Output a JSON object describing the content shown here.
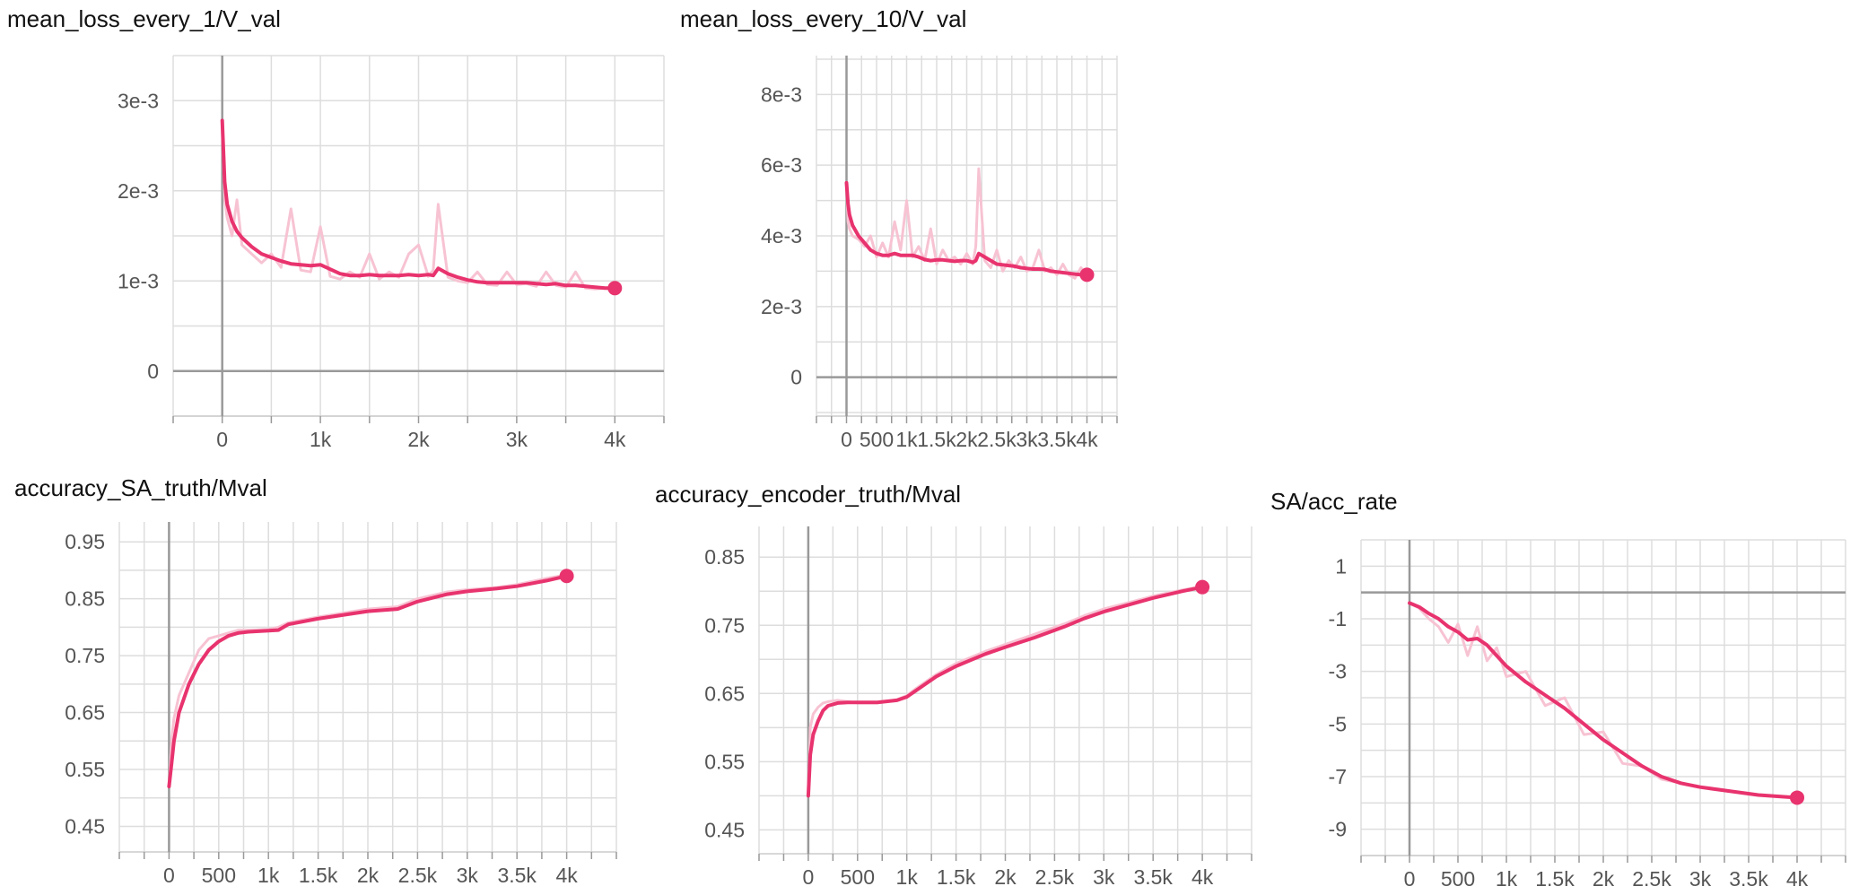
{
  "chart_data": [
    {
      "type": "line",
      "title": "mean_loss_every_1/V_val",
      "xlabel": "",
      "ylabel": "",
      "xlim": [
        -500,
        4500
      ],
      "ylim": [
        -0.0005,
        0.0035
      ],
      "xticks": [
        0,
        1000,
        2000,
        3000,
        4000
      ],
      "xtick_labels": [
        "0",
        "1k",
        "2k",
        "3k",
        "4k"
      ],
      "yticks": [
        0,
        0.001,
        0.002,
        0.003
      ],
      "ytick_labels": [
        "0",
        "1e-3",
        "2e-3",
        "3e-3"
      ],
      "grid": true,
      "line_color": "#e8336e",
      "raw_color": "#f7c3d3",
      "series": [
        {
          "x": [
            0,
            25,
            50,
            100,
            150,
            200,
            300,
            400,
            500,
            600,
            700,
            800,
            900,
            1000,
            1100,
            1200,
            1300,
            1400,
            1500,
            1600,
            1700,
            1800,
            1900,
            2000,
            2100,
            2150,
            2200,
            2300,
            2400,
            2500,
            2600,
            2700,
            2800,
            2900,
            3000,
            3100,
            3200,
            3300,
            3400,
            3500,
            3600,
            3700,
            3800,
            3900,
            4000
          ],
          "smoothed": [
            0.00278,
            0.0021,
            0.00185,
            0.00166,
            0.00155,
            0.00148,
            0.00138,
            0.0013,
            0.00126,
            0.00122,
            0.00119,
            0.00118,
            0.00117,
            0.00118,
            0.00113,
            0.00108,
            0.00106,
            0.00106,
            0.00107,
            0.00106,
            0.00106,
            0.00106,
            0.00107,
            0.00106,
            0.00107,
            0.00106,
            0.00114,
            0.00108,
            0.00104,
            0.00101,
            0.00099,
            0.00098,
            0.00098,
            0.00098,
            0.00098,
            0.00098,
            0.00097,
            0.00096,
            0.00097,
            0.00095,
            0.00095,
            0.00094,
            0.00093,
            0.00092,
            0.00092
          ],
          "raw": [
            0.00278,
            0.0019,
            0.0017,
            0.0015,
            0.0019,
            0.0014,
            0.0013,
            0.0012,
            0.0013,
            0.00115,
            0.0018,
            0.00112,
            0.0011,
            0.0016,
            0.00105,
            0.00102,
            0.0011,
            0.00104,
            0.0013,
            0.00102,
            0.0011,
            0.00104,
            0.0013,
            0.0014,
            0.00105,
            0.00112,
            0.00185,
            0.00104,
            0.001,
            0.00098,
            0.0011,
            0.00096,
            0.00095,
            0.0011,
            0.00096,
            0.00097,
            0.00094,
            0.0011,
            0.00095,
            0.00093,
            0.0011,
            0.00092,
            0.00091,
            0.00092,
            0.0009
          ]
        }
      ]
    },
    {
      "type": "line",
      "title": "mean_loss_every_10/V_val",
      "xlabel": "",
      "ylabel": "",
      "xlim": [
        -500,
        4500
      ],
      "ylim": [
        -0.0011,
        0.0091
      ],
      "xticks": [
        0,
        500,
        1000,
        1500,
        2000,
        2500,
        3000,
        3500,
        4000
      ],
      "xtick_labels": [
        "0",
        "500",
        "1k",
        "1.5k",
        "2k",
        "2.5k",
        "3k",
        "3.5k",
        "4k"
      ],
      "yticks": [
        0,
        0.002,
        0.004,
        0.006,
        0.008
      ],
      "ytick_labels": [
        "0",
        "2e-3",
        "4e-3",
        "6e-3",
        "8e-3"
      ],
      "grid": true,
      "line_color": "#e8336e",
      "raw_color": "#f7c3d3",
      "series": [
        {
          "x": [
            0,
            25,
            50,
            100,
            200,
            300,
            400,
            500,
            600,
            700,
            800,
            900,
            1000,
            1100,
            1200,
            1300,
            1400,
            1500,
            1600,
            1700,
            1800,
            1900,
            2000,
            2100,
            2150,
            2200,
            2300,
            2400,
            2500,
            2600,
            2700,
            2800,
            2900,
            3000,
            3100,
            3200,
            3300,
            3400,
            3500,
            3600,
            3700,
            3800,
            3900,
            4000
          ],
          "smoothed": [
            0.0055,
            0.0049,
            0.0046,
            0.0043,
            0.004,
            0.0038,
            0.0036,
            0.0035,
            0.00345,
            0.00345,
            0.0035,
            0.00345,
            0.00345,
            0.00345,
            0.0034,
            0.00333,
            0.0033,
            0.00332,
            0.00332,
            0.0033,
            0.00328,
            0.0033,
            0.0033,
            0.00325,
            0.0033,
            0.0035,
            0.0034,
            0.0033,
            0.0032,
            0.00318,
            0.00316,
            0.00314,
            0.0031,
            0.00308,
            0.00306,
            0.00306,
            0.00305,
            0.003,
            0.00298,
            0.00296,
            0.00294,
            0.00292,
            0.0029,
            0.0029
          ],
          "raw": [
            0.0055,
            0.0044,
            0.0042,
            0.004,
            0.0039,
            0.0037,
            0.004,
            0.0034,
            0.0038,
            0.0034,
            0.0044,
            0.0036,
            0.005,
            0.0034,
            0.0037,
            0.0033,
            0.0042,
            0.0032,
            0.0036,
            0.0033,
            0.0034,
            0.0032,
            0.0035,
            0.0032,
            0.0037,
            0.0059,
            0.0033,
            0.0031,
            0.0036,
            0.003,
            0.0033,
            0.0031,
            0.0034,
            0.003,
            0.0031,
            0.0036,
            0.003,
            0.0031,
            0.0029,
            0.0032,
            0.0029,
            0.0028,
            0.0031,
            0.0029
          ]
        }
      ]
    },
    {
      "type": "line",
      "title": "accuracy_SA_truth/Mval",
      "xlabel": "",
      "ylabel": "",
      "xlim": [
        -500,
        4500
      ],
      "ylim": [
        0.405,
        0.985
      ],
      "xticks": [
        0,
        500,
        1000,
        1500,
        2000,
        2500,
        3000,
        3500,
        4000
      ],
      "xtick_labels": [
        "0",
        "500",
        "1k",
        "1.5k",
        "2k",
        "2.5k",
        "3k",
        "3.5k",
        "4k"
      ],
      "yticks": [
        0.45,
        0.55,
        0.65,
        0.75,
        0.85,
        0.95
      ],
      "ytick_labels": [
        "0.45",
        "0.55",
        "0.65",
        "0.75",
        "0.85",
        "0.95"
      ],
      "grid": true,
      "line_color": "#e8336e",
      "raw_color": "#f7c3d3",
      "series": [
        {
          "x": [
            0,
            25,
            50,
            100,
            200,
            300,
            400,
            500,
            600,
            700,
            800,
            1000,
            1100,
            1200,
            1500,
            2000,
            2300,
            2500,
            2800,
            3000,
            3300,
            3500,
            3800,
            4000
          ],
          "smoothed": [
            0.52,
            0.56,
            0.6,
            0.65,
            0.7,
            0.735,
            0.76,
            0.775,
            0.785,
            0.79,
            0.792,
            0.794,
            0.795,
            0.805,
            0.815,
            0.828,
            0.832,
            0.845,
            0.858,
            0.863,
            0.868,
            0.872,
            0.882,
            0.89
          ],
          "raw": [
            0.52,
            0.6,
            0.64,
            0.68,
            0.72,
            0.76,
            0.78,
            0.785,
            0.79,
            0.795,
            0.795,
            0.796,
            0.8,
            0.808,
            0.818,
            0.832,
            0.836,
            0.85,
            0.862,
            0.866,
            0.87,
            0.875,
            0.886,
            0.892
          ]
        }
      ]
    },
    {
      "type": "line",
      "title": "accuracy_encoder_truth/Mval",
      "xlabel": "",
      "ylabel": "",
      "xlim": [
        -500,
        4500
      ],
      "ylim": [
        0.415,
        0.895
      ],
      "xticks": [
        0,
        500,
        1000,
        1500,
        2000,
        2500,
        3000,
        3500,
        4000
      ],
      "xtick_labels": [
        "0",
        "500",
        "1k",
        "1.5k",
        "2k",
        "2.5k",
        "3k",
        "3.5k",
        "4k"
      ],
      "yticks": [
        0.45,
        0.55,
        0.65,
        0.75,
        0.85
      ],
      "ytick_labels": [
        "0.45",
        "0.55",
        "0.65",
        "0.75",
        "0.85"
      ],
      "grid": true,
      "line_color": "#e8336e",
      "raw_color": "#f7c3d3",
      "series": [
        {
          "x": [
            0,
            20,
            50,
            100,
            150,
            200,
            300,
            400,
            500,
            700,
            900,
            1000,
            1100,
            1300,
            1500,
            1800,
            2000,
            2300,
            2600,
            2800,
            3000,
            3300,
            3500,
            3800,
            4000
          ],
          "smoothed": [
            0.5,
            0.56,
            0.59,
            0.61,
            0.625,
            0.632,
            0.636,
            0.637,
            0.637,
            0.637,
            0.64,
            0.645,
            0.655,
            0.675,
            0.69,
            0.708,
            0.718,
            0.732,
            0.748,
            0.76,
            0.77,
            0.782,
            0.79,
            0.8,
            0.806
          ],
          "raw": [
            0.5,
            0.6,
            0.62,
            0.63,
            0.636,
            0.638,
            0.64,
            0.638,
            0.636,
            0.636,
            0.641,
            0.647,
            0.658,
            0.678,
            0.694,
            0.712,
            0.722,
            0.737,
            0.752,
            0.764,
            0.774,
            0.785,
            0.793,
            0.802,
            0.807
          ]
        }
      ]
    },
    {
      "type": "line",
      "title": "SA/acc_rate",
      "xlabel": "",
      "ylabel": "",
      "xlim": [
        -500,
        4500
      ],
      "ylim": [
        -10.0,
        2.0
      ],
      "xticks": [
        0,
        500,
        1000,
        1500,
        2000,
        2500,
        3000,
        3500,
        4000
      ],
      "xtick_labels": [
        "0",
        "500",
        "1k",
        "1.5k",
        "2k",
        "2.5k",
        "3k",
        "3.5k",
        "4k"
      ],
      "yticks": [
        1,
        -1,
        -3,
        -5,
        -7,
        -9
      ],
      "ytick_labels": [
        "1",
        "-1",
        "-3",
        "-5",
        "-7",
        "-9"
      ],
      "grid": true,
      "line_color": "#e8336e",
      "raw_color": "#f7c3d3",
      "series": [
        {
          "x": [
            0,
            100,
            200,
            300,
            400,
            500,
            600,
            700,
            800,
            900,
            1000,
            1200,
            1400,
            1600,
            1800,
            2000,
            2200,
            2400,
            2600,
            2800,
            3000,
            3300,
            3600,
            4000
          ],
          "smoothed": [
            -0.4,
            -0.55,
            -0.8,
            -1.0,
            -1.3,
            -1.5,
            -1.8,
            -1.75,
            -2.0,
            -2.4,
            -2.8,
            -3.4,
            -3.9,
            -4.4,
            -5.0,
            -5.6,
            -6.1,
            -6.6,
            -7.0,
            -7.25,
            -7.4,
            -7.55,
            -7.7,
            -7.8
          ],
          "raw": [
            -0.4,
            -0.6,
            -1.0,
            -1.3,
            -1.9,
            -1.2,
            -2.4,
            -1.3,
            -2.6,
            -2.1,
            -3.2,
            -3.0,
            -4.3,
            -4.0,
            -5.4,
            -5.3,
            -6.5,
            -6.6,
            -7.1,
            -7.25,
            -7.4,
            -7.55,
            -7.7,
            -7.8
          ]
        }
      ]
    }
  ]
}
